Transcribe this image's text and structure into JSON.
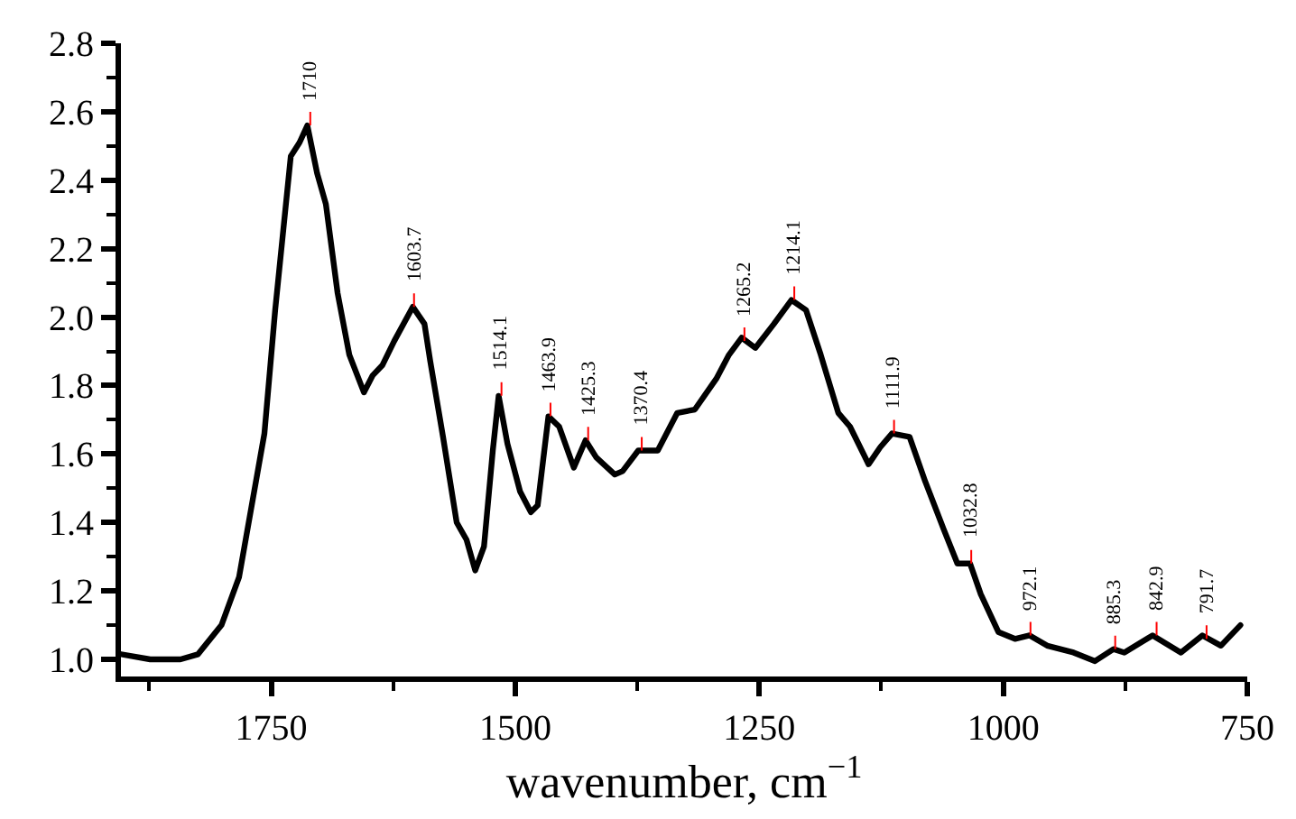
{
  "chart_data": {
    "type": "line",
    "xlabel": "wavenumber, cm$^{−1}$",
    "xlim": [
      1904,
      750
    ],
    "xticks": [
      1750,
      1500,
      1250,
      1000,
      750
    ],
    "ylim": [
      0.95,
      2.8
    ],
    "yticks": [
      {
        "value": 1,
        "label": "1.0"
      },
      1.2,
      1.4,
      1.6,
      1.8,
      {
        "value": 2,
        "label": "2.0"
      },
      2.2,
      2.4,
      2.6,
      2.8
    ],
    "marker": "none",
    "line_style": "solid",
    "series": [
      {
        "color": "#000000",
        "x": [
          1904,
          1874,
          1843,
          1825,
          1801,
          1783,
          1757,
          1746,
          1730,
          1721,
          1713,
          1703,
          1694,
          1682,
          1670,
          1655,
          1646,
          1636,
          1624,
          1605,
          1593,
          1587,
          1574,
          1560,
          1550,
          1541,
          1532,
          1523,
          1517,
          1508,
          1495,
          1484,
          1477,
          1466,
          1455,
          1440,
          1428,
          1417,
          1398,
          1390,
          1374,
          1354,
          1334,
          1316,
          1294,
          1281,
          1268,
          1254,
          1235,
          1217,
          1202,
          1187,
          1169,
          1157,
          1138,
          1126,
          1114,
          1096,
          1080,
          1061,
          1047,
          1034,
          1023,
          1005,
          988,
          973,
          955,
          928,
          906,
          887,
          876,
          847,
          818,
          796,
          777,
          757
        ],
        "values": [
          1.015,
          1.0,
          1.0,
          1.015,
          1.1,
          1.24,
          1.66,
          2.02,
          2.47,
          2.51,
          2.56,
          2.42,
          2.33,
          2.07,
          1.89,
          1.78,
          1.83,
          1.86,
          1.93,
          2.03,
          1.98,
          1.87,
          1.65,
          1.4,
          1.35,
          1.26,
          1.33,
          1.61,
          1.77,
          1.63,
          1.49,
          1.43,
          1.45,
          1.71,
          1.68,
          1.56,
          1.64,
          1.59,
          1.54,
          1.55,
          1.61,
          1.61,
          1.72,
          1.73,
          1.82,
          1.89,
          1.94,
          1.91,
          1.98,
          2.05,
          2.02,
          1.89,
          1.72,
          1.68,
          1.57,
          1.62,
          1.66,
          1.65,
          1.52,
          1.38,
          1.28,
          1.28,
          1.19,
          1.08,
          1.06,
          1.07,
          1.04,
          1.02,
          0.995,
          1.03,
          1.02,
          1.07,
          1.02,
          1.07,
          1.04,
          1.1
        ]
      }
    ],
    "annotations": [
      {
        "text": "1710",
        "x": 1710,
        "y": 2.56
      },
      {
        "text": "1603.7",
        "x": 1603.7,
        "y": 2.03
      },
      {
        "text": "1514.1",
        "x": 1514.1,
        "y": 1.77
      },
      {
        "text": "1463.9",
        "x": 1463.9,
        "y": 1.71
      },
      {
        "text": "1425.3",
        "x": 1425.3,
        "y": 1.64
      },
      {
        "text": "1370.4",
        "x": 1370.4,
        "y": 1.61
      },
      {
        "text": "1265.2",
        "x": 1265.2,
        "y": 1.93
      },
      {
        "text": "1214.1",
        "x": 1214.1,
        "y": 2.05
      },
      {
        "text": "1111.9",
        "x": 1111.9,
        "y": 1.66
      },
      {
        "text": "1032.8",
        "x": 1032.8,
        "y": 1.28
      },
      {
        "text": "972.1",
        "x": 972.1,
        "y": 1.07
      },
      {
        "text": "885.3",
        "x": 885.3,
        "y": 1.03
      },
      {
        "text": "842.9",
        "x": 842.9,
        "y": 1.07
      },
      {
        "text": "791.7",
        "x": 791.7,
        "y": 1.06
      }
    ]
  }
}
